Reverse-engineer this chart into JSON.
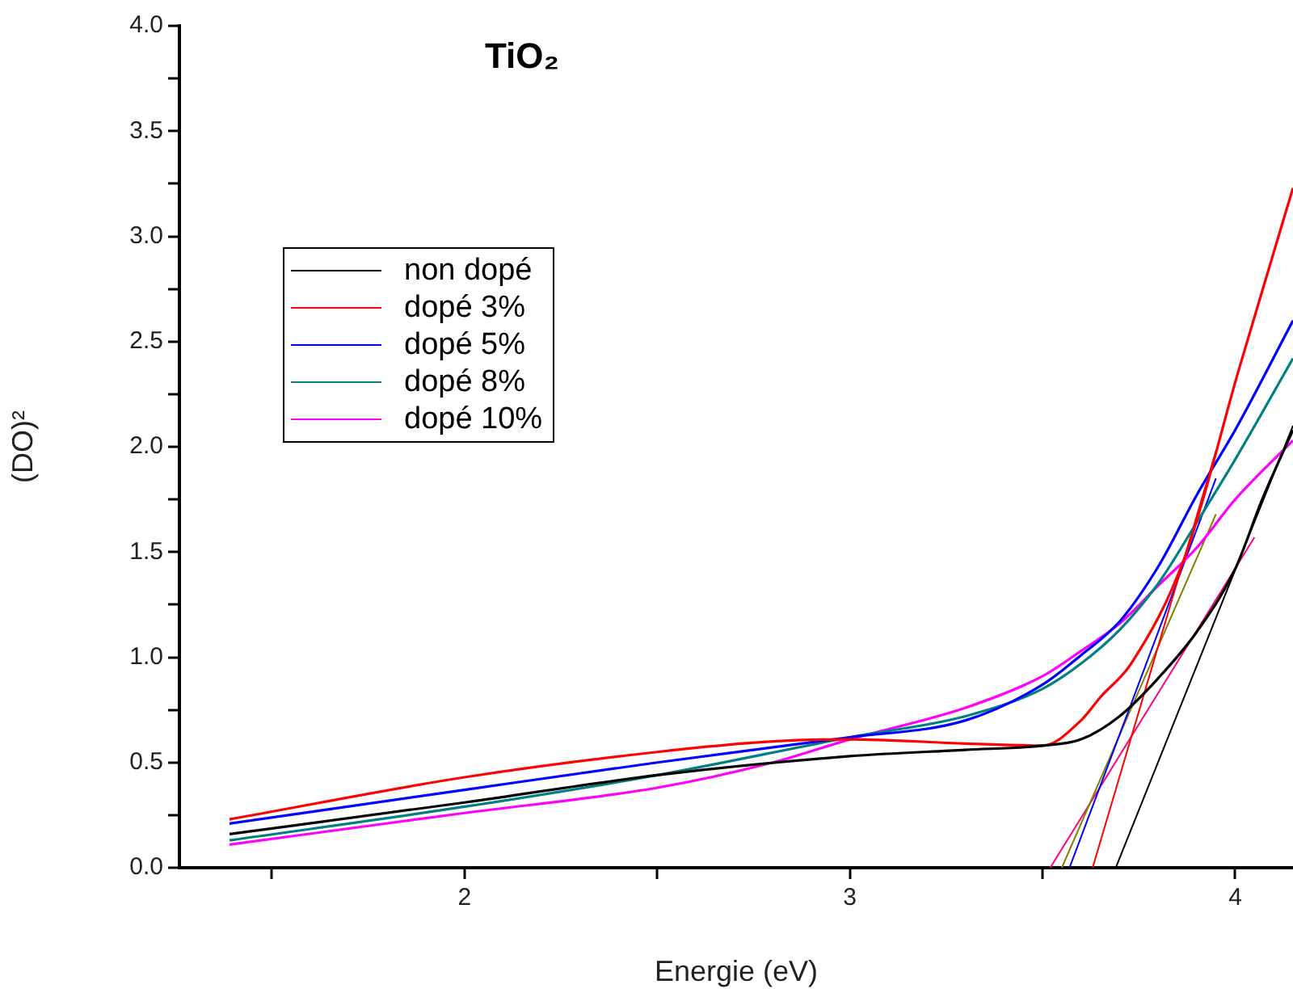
{
  "chart_data": {
    "type": "line",
    "title": "TiO₂",
    "xlabel": "Energie (eV)",
    "ylabel": "(DO)²",
    "xlim": [
      1.26,
      4.15
    ],
    "xticks": [
      {
        "value": 1.5,
        "label": null
      },
      2,
      {
        "value": 2.5,
        "label": null
      },
      3,
      {
        "value": 3.5,
        "label": null
      },
      4
    ],
    "ylim": [
      0,
      4
    ],
    "yticks": [
      {
        "value": 0,
        "label": "0.0"
      },
      {
        "value": 0.25,
        "label": null
      },
      0.5,
      {
        "value": 0.75,
        "label": null
      },
      {
        "value": 1,
        "label": "1.0"
      },
      {
        "value": 1.25,
        "label": null
      },
      1.5,
      {
        "value": 1.75,
        "label": null
      },
      {
        "value": 2,
        "label": "2.0"
      },
      {
        "value": 2.25,
        "label": null
      },
      2.5,
      {
        "value": 2.75,
        "label": null
      },
      {
        "value": 3,
        "label": "3.0"
      },
      {
        "value": 3.25,
        "label": null
      },
      3.5,
      {
        "value": 3.75,
        "label": null
      },
      {
        "value": 4,
        "label": "4.0"
      }
    ],
    "grid": false,
    "legend": "top left",
    "marker": "none",
    "line_style": "solid",
    "series": [
      {
        "name": "non dopé",
        "color": "#000000",
        "x": [
          1.39,
          2,
          2.5,
          3,
          3.3,
          3.5,
          3.6,
          3.7,
          3.8,
          3.9,
          4,
          4.07,
          4.15
        ],
        "values": [
          0.16,
          0.31,
          0.44,
          0.53,
          0.56,
          0.58,
          0.61,
          0.72,
          0.9,
          1.12,
          1.42,
          1.75,
          2.08
        ]
      },
      {
        "name": "dopé 3%",
        "color": "#ff0000",
        "x": [
          1.39,
          2,
          2.5,
          2.8,
          3,
          3.3,
          3.5,
          3.6,
          3.65,
          3.73,
          3.87,
          4.01,
          4.15
        ],
        "values": [
          0.23,
          0.43,
          0.55,
          0.6,
          0.61,
          0.59,
          0.58,
          0.7,
          0.81,
          0.97,
          1.48,
          2.37,
          3.23
        ]
      },
      {
        "name": "dopé 5%",
        "color": "#0000ff",
        "x": [
          1.39,
          2,
          2.5,
          3,
          3.3,
          3.5,
          3.6,
          3.7,
          3.8,
          3.9,
          4,
          4.15
        ],
        "values": [
          0.21,
          0.37,
          0.5,
          0.62,
          0.7,
          0.87,
          1.01,
          1.17,
          1.43,
          1.77,
          2.08,
          2.6
        ]
      },
      {
        "name": "dopé 8%",
        "color": "#008080",
        "x": [
          1.39,
          2,
          2.5,
          3,
          3.3,
          3.5,
          3.6,
          3.7,
          3.8,
          3.9,
          4,
          4.15
        ],
        "values": [
          0.13,
          0.29,
          0.44,
          0.62,
          0.72,
          0.85,
          0.97,
          1.13,
          1.35,
          1.64,
          1.94,
          2.42
        ]
      },
      {
        "name": "dopé 10%",
        "color": "#ff00ff",
        "x": [
          1.39,
          2,
          2.5,
          2.8,
          3,
          3.3,
          3.5,
          3.6,
          3.7,
          3.8,
          3.9,
          4,
          4.15
        ],
        "values": [
          0.11,
          0.26,
          0.38,
          0.5,
          0.61,
          0.76,
          0.91,
          1.03,
          1.16,
          1.34,
          1.52,
          1.75,
          2.03
        ]
      },
      {
        "color": "#000000",
        "x": [
          3.69,
          4.15
        ],
        "values": [
          0,
          2.1
        ]
      },
      {
        "color": "#ff0000",
        "x": [
          3.63,
          3.95
        ],
        "values": [
          0,
          1.98
        ]
      },
      {
        "color": "#0000ff",
        "x": [
          3.57,
          3.95
        ],
        "values": [
          0,
          1.85
        ]
      },
      {
        "color": "#808000",
        "x": [
          3.55,
          3.95
        ],
        "values": [
          0,
          1.68
        ]
      },
      {
        "color": "#ff0080",
        "x": [
          3.52,
          4.05
        ],
        "values": [
          0,
          1.57
        ]
      }
    ]
  }
}
